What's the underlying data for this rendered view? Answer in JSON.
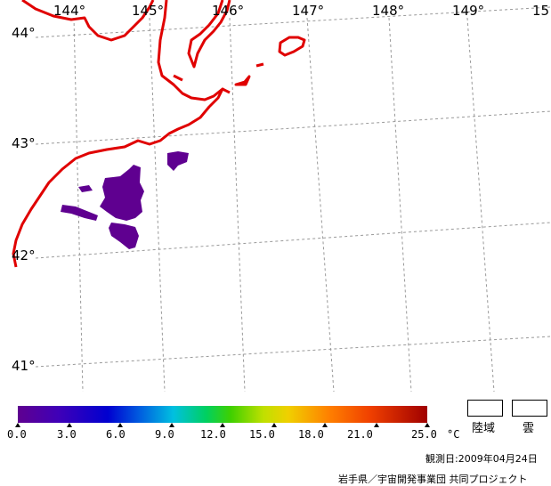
{
  "longitude_labels": [
    "144°",
    "145°",
    "146°",
    "147°",
    "148°",
    "149°",
    "15"
  ],
  "latitude_labels": [
    "44°",
    "43°",
    "42°",
    "41°"
  ],
  "colorbar": {
    "ticks": [
      "0.0",
      "3.0",
      "6.0",
      "9.0",
      "12.0",
      "15.0",
      "18.0",
      "21.0",
      "25.0"
    ],
    "unit": "°C"
  },
  "legend": {
    "land_label": "陸域",
    "cloud_label": "雲"
  },
  "observation_date": "観測日:2009年04月24日",
  "credit": "岩手県／宇宙開発事業団 共同プロジェクト",
  "colors": {
    "coast": "#e00000",
    "grid": "#999999",
    "sst_cold": "#5f0090"
  }
}
